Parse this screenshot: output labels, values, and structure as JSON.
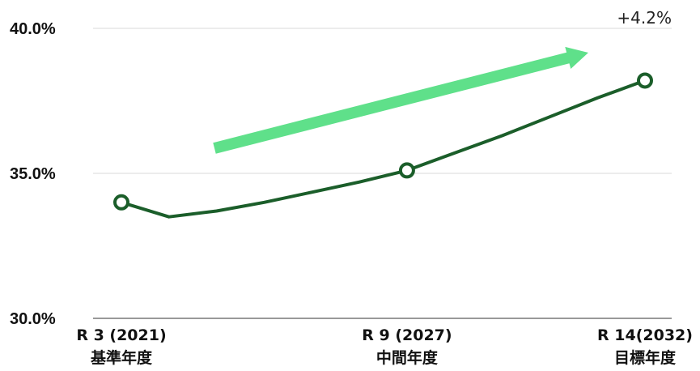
{
  "chart_data": {
    "type": "line",
    "title": "",
    "xlabel": "",
    "ylabel": "",
    "ylim": [
      30,
      40
    ],
    "y_ticks": [
      "30.0%",
      "35.0%",
      "40.0%"
    ],
    "y_tick_values": [
      30,
      35,
      40
    ],
    "grid": "horizontal",
    "categories": [
      {
        "line1": "R 3 (2021)",
        "line2": "基準年度"
      },
      {
        "line1": "R 9 (2027)",
        "line2": "中間年度"
      },
      {
        "line1": "R 14(2032)",
        "line2": "目標年度"
      }
    ],
    "series": [
      {
        "x": [
          2021,
          2022,
          2023,
          2024,
          2025,
          2026,
          2027,
          2028,
          2029,
          2030,
          2031,
          2032
        ],
        "values": [
          34.0,
          33.5,
          33.7,
          34.0,
          34.35,
          34.7,
          35.1,
          35.7,
          36.3,
          36.95,
          37.6,
          38.2
        ],
        "marker_x": [
          2021,
          2027,
          2032
        ],
        "color": "#1b5e2a"
      }
    ],
    "annotation": {
      "text": "+4.2%",
      "arrow_color": "#5fe08a",
      "arrow_direction": "up-right"
    }
  }
}
